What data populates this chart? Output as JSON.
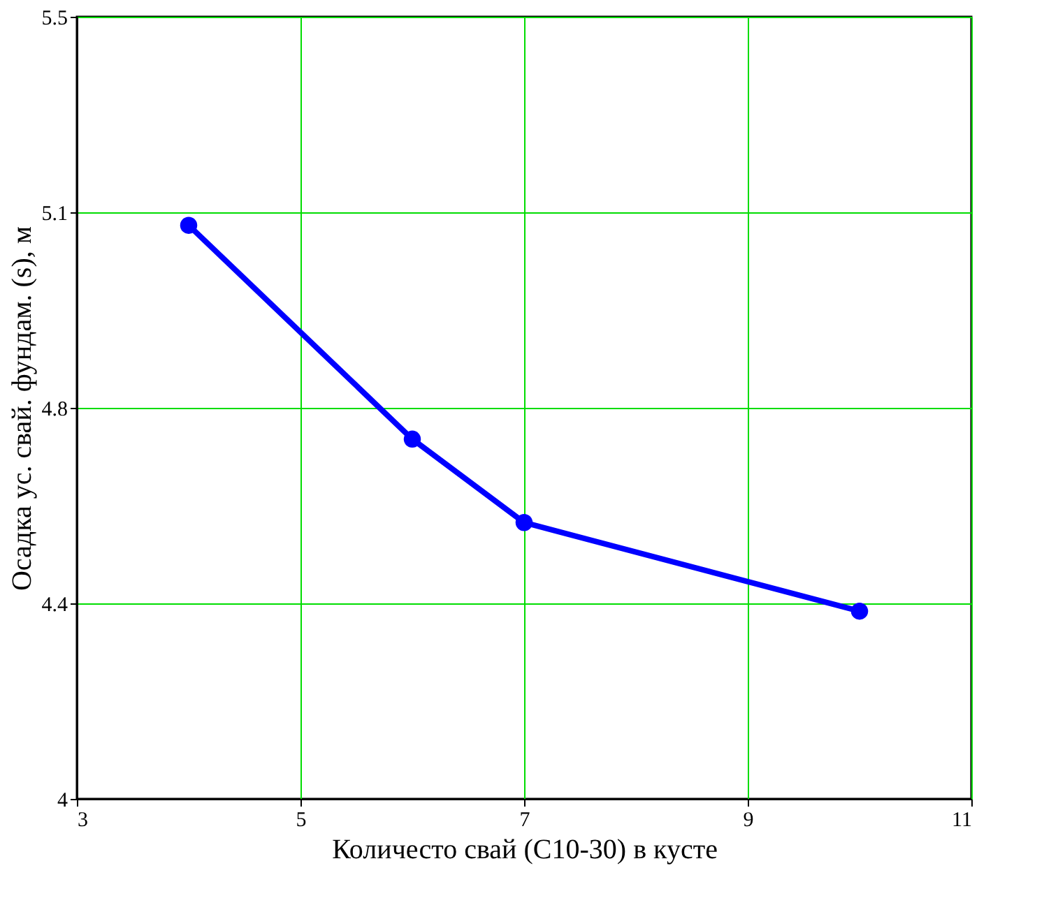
{
  "chart_data": {
    "type": "line",
    "xlabel": "Количесто свай (С10-30) в кусте",
    "ylabel": "Осадка ус. свай. фундам. (s), м",
    "x": [
      4,
      6,
      7,
      10
    ],
    "series": [
      {
        "color": "#0000ff",
        "values": [
          5.1,
          4.69,
          4.53,
          4.36
        ]
      }
    ],
    "xlim": [
      3,
      11
    ],
    "xticks": [
      3,
      5,
      7,
      9,
      11
    ],
    "ylim": [
      4,
      5.5
    ],
    "yticks": [
      4,
      {
        "value": 4.375,
        "label": "4.4"
      },
      {
        "value": 4.75,
        "label": "4.8"
      },
      {
        "value": 5.125,
        "label": "5.1"
      },
      5.5
    ],
    "grid": true,
    "marker": "circle",
    "line_style": "solid"
  }
}
